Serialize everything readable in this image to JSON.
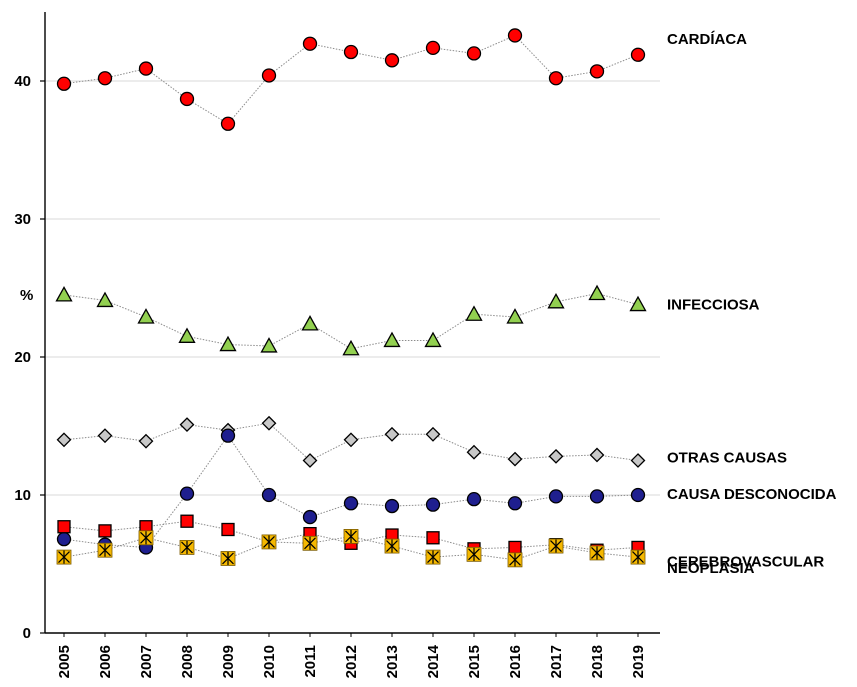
{
  "chart_data": {
    "type": "line",
    "title": "",
    "xlabel": "",
    "ylabel": "%",
    "x": [
      2005,
      2006,
      2007,
      2008,
      2009,
      2010,
      2011,
      2012,
      2013,
      2014,
      2015,
      2016,
      2017,
      2018,
      2019
    ],
    "ylim": [
      0,
      44
    ],
    "yticks": [
      0,
      10,
      20,
      30,
      40
    ],
    "grid": "horizontal",
    "legend": "labels at right end of each series",
    "series": [
      {
        "name": "CARDÍACA",
        "marker": "circle",
        "fill": "#ff0000",
        "values": [
          39.8,
          40.2,
          40.9,
          38.7,
          36.9,
          40.4,
          42.7,
          42.1,
          41.5,
          42.4,
          42.0,
          43.3,
          40.2,
          40.7,
          41.9
        ]
      },
      {
        "name": "INFECCIOSA",
        "marker": "triangle",
        "fill": "#92d050",
        "values": [
          24.5,
          24.1,
          22.9,
          21.5,
          20.9,
          20.8,
          22.4,
          20.6,
          21.2,
          21.2,
          23.1,
          22.9,
          24.0,
          24.6,
          23.8
        ]
      },
      {
        "name": "OTRAS CAUSAS",
        "marker": "diamond",
        "fill": "#c8c8c8",
        "values": [
          14.0,
          14.3,
          13.9,
          15.1,
          14.7,
          15.2,
          12.5,
          14.0,
          14.4,
          14.4,
          13.1,
          12.6,
          12.8,
          12.9,
          12.5
        ]
      },
      {
        "name": "CAUSA DESCONOCIDA",
        "marker": "circle",
        "fill": "#1f1f8f",
        "values": [
          6.8,
          6.4,
          6.2,
          10.1,
          14.3,
          10.0,
          8.4,
          9.4,
          9.2,
          9.3,
          9.7,
          9.4,
          9.9,
          9.9,
          10.0
        ]
      },
      {
        "name": "CEREBROVASCULAR",
        "marker": "square",
        "fill": "#ff0000",
        "values": [
          7.7,
          7.4,
          7.7,
          8.1,
          7.5,
          6.6,
          7.2,
          6.5,
          7.1,
          6.9,
          6.1,
          6.2,
          6.4,
          6.0,
          6.2
        ]
      },
      {
        "name": "NEOPLASIA",
        "marker": "square-star",
        "fill": "#f5b800",
        "values": [
          5.5,
          6.0,
          6.9,
          6.2,
          5.4,
          6.6,
          6.5,
          7.0,
          6.3,
          5.5,
          5.7,
          5.3,
          6.3,
          5.8,
          5.5
        ]
      }
    ]
  }
}
